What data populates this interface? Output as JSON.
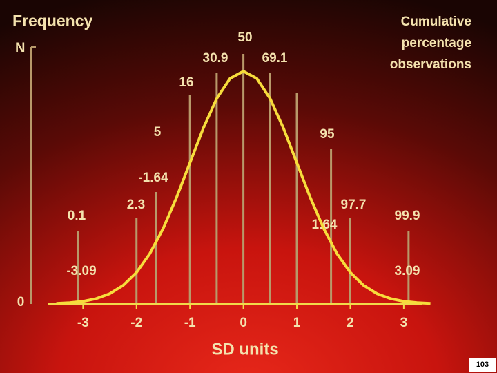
{
  "chart_data": {
    "type": "line",
    "y_label": "Frequency",
    "y_label_top": "N",
    "right_label": [
      "Cumulative",
      "percentage",
      "observations"
    ],
    "x_label": "SD units",
    "xlim": [
      -3.65,
      3.35
    ],
    "xticks": [
      -3,
      -2,
      -1,
      0,
      1,
      2,
      3
    ],
    "ylim": [
      0,
      0.45
    ],
    "yticks": [
      0
    ],
    "curve_color": "#f7dc3c",
    "axis_color": "#f2d94a",
    "cutoff_color": "#b8996a",
    "series": [
      {
        "x": [
          -3.5,
          -3.25,
          -3,
          -2.75,
          -2.5,
          -2.25,
          -2,
          -1.75,
          -1.5,
          -1.25,
          -1,
          -0.75,
          -0.5,
          -0.25,
          0,
          0.25,
          0.5,
          0.75,
          1,
          1.25,
          1.5,
          1.75,
          2,
          2.25,
          2.5,
          2.75,
          3,
          3.25,
          3.5
        ],
        "values": [
          0.0009,
          0.002,
          0.0044,
          0.0091,
          0.0175,
          0.0317,
          0.054,
          0.0863,
          0.1295,
          0.1826,
          0.242,
          0.3011,
          0.3521,
          0.3867,
          0.3989,
          0.3867,
          0.3521,
          0.3011,
          0.242,
          0.1826,
          0.1295,
          0.0863,
          0.054,
          0.0317,
          0.0175,
          0.0091,
          0.0044,
          0.002,
          0.0009
        ]
      }
    ],
    "cutoffs": {
      "x": [
        -3.09,
        -2,
        -1.64,
        -1,
        -0.5,
        0,
        0.5,
        1,
        1.64,
        2,
        3.09
      ],
      "x_labels": [
        -3.09,
        null,
        -1.64,
        null,
        null,
        null,
        null,
        null,
        1.64,
        null,
        3.09
      ],
      "values": [
        0.1,
        2.3,
        5,
        16,
        30.9,
        50,
        69.1,
        null,
        95,
        97.7,
        99.9
      ]
    }
  },
  "page_number": 103
}
